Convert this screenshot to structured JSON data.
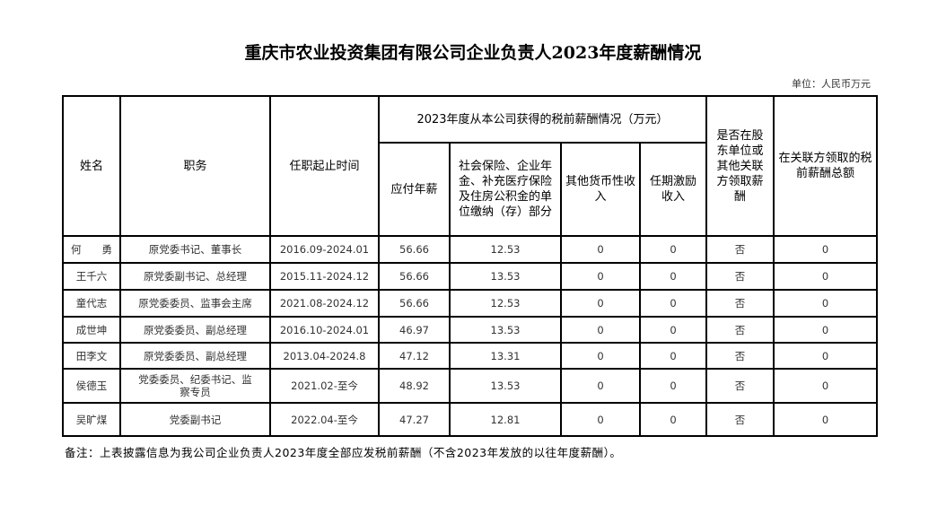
{
  "title": "重庆市农业投资集团有限公司企业负责人2023年度薪酬情况",
  "unit": "单位：人民币万元",
  "headers": {
    "name": "姓名",
    "position": "职务",
    "term": "任职起止时间",
    "group": "2023年度从本公司获得的税前薪酬情况（万元）",
    "salary": "应付年薪",
    "social": "社会保险、企业年金、补充医疗保险及住房公积金的单位缴纳（存）部分",
    "other": "其他货币性收入",
    "incentive": "任期激励收入",
    "related": "是否在股东单位或其他关联方领取薪酬",
    "related_total": "在关联方领取的税前薪酬总额"
  },
  "rows": [
    {
      "name": "何　　勇",
      "position": "原党委书记、董事长",
      "term": "2016.09-2024.01",
      "salary": "56.66",
      "social": "12.53",
      "other": "0",
      "incentive": "0",
      "related": "否",
      "related_total": "0"
    },
    {
      "name": "王千六",
      "position": "原党委副书记、总经理",
      "term": "2015.11-2024.12",
      "salary": "56.66",
      "social": "13.53",
      "other": "0",
      "incentive": "0",
      "related": "否",
      "related_total": "0"
    },
    {
      "name": "童代志",
      "position": "原党委委员、监事会主席",
      "term": "2021.08-2024.12",
      "salary": "56.66",
      "social": "12.53",
      "other": "0",
      "incentive": "0",
      "related": "否",
      "related_total": "0"
    },
    {
      "name": "成世坤",
      "position": "原党委委员、副总经理",
      "term": "2016.10-2024.01",
      "salary": "46.97",
      "social": "13.53",
      "other": "0",
      "incentive": "0",
      "related": "否",
      "related_total": "0"
    },
    {
      "name": "田李文",
      "position": "原党委委员、副总经理",
      "term": "2013.04-2024.8",
      "salary": "47.12",
      "social": "13.31",
      "other": "0",
      "incentive": "0",
      "related": "否",
      "related_total": "0"
    },
    {
      "name": "侯德玉",
      "position": "党委委员、纪委书记、监察专员",
      "term": "2021.02-至今",
      "salary": "48.92",
      "social": "13.53",
      "other": "0",
      "incentive": "0",
      "related": "否",
      "related_total": "0"
    },
    {
      "name": "吴旷煤",
      "position": "党委副书记",
      "term": "2022.04-至今",
      "salary": "47.27",
      "social": "12.81",
      "other": "0",
      "incentive": "0",
      "related": "否",
      "related_total": "0"
    }
  ],
  "note": "备注：上表披露信息为我公司企业负责人2023年度全部应发税前薪酬（不含2023年发放的以往年度薪酬）。"
}
